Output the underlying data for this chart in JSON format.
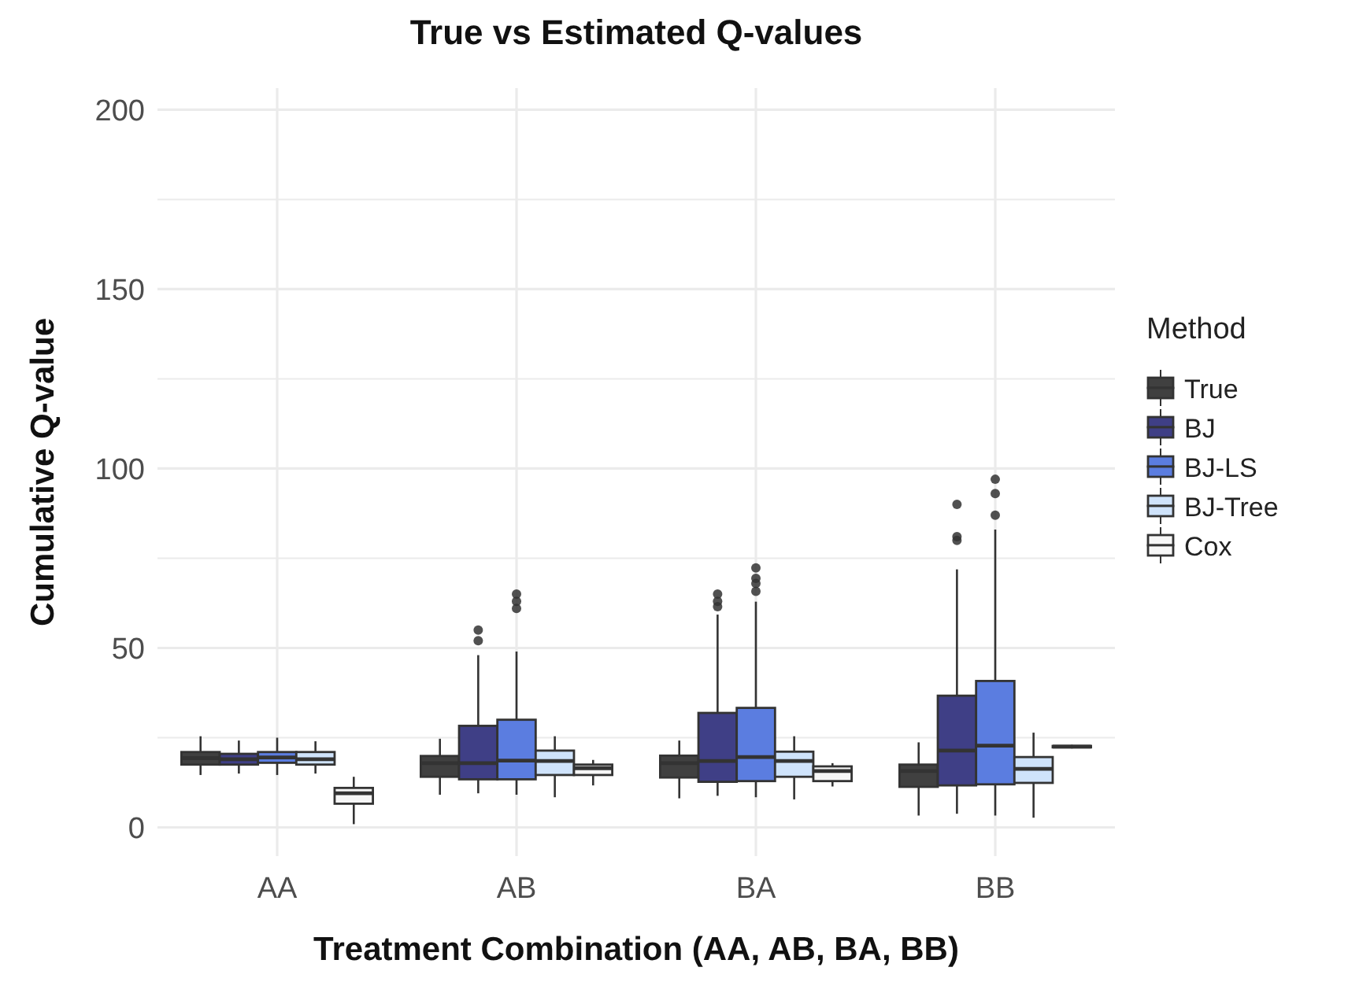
{
  "chart_data": {
    "type": "box",
    "title": "True vs Estimated Q-values",
    "xlabel": "Treatment Combination (AA, AB, BA, BB)",
    "ylabel": "Cumulative Q-value",
    "legend_title": "Method",
    "categories": [
      "AA",
      "AB",
      "BA",
      "BB"
    ],
    "ylim": [
      -8,
      206
    ],
    "yticks": [
      0,
      {
        "value": 25,
        "label": null
      },
      50,
      {
        "value": 75,
        "label": null
      },
      100,
      {
        "value": 125,
        "label": null
      },
      150,
      {
        "value": 175,
        "label": null
      },
      200
    ],
    "grid": true,
    "legend": "right",
    "series": [
      {
        "name": "True",
        "color": "#404040",
        "boxes": [
          {
            "low": 14.6,
            "q1": 17.5,
            "median": 19.3,
            "q3": 21,
            "high": 25.4
          },
          {
            "low": 9.1,
            "q1": 14.1,
            "median": 17.9,
            "q3": 19.9,
            "high": 24.7
          },
          {
            "low": 8.1,
            "q1": 13.9,
            "median": 17.9,
            "q3": 20,
            "high": 24.2
          },
          {
            "low": 3.3,
            "q1": 11.3,
            "median": 15.7,
            "q3": 17.5,
            "high": 23.7
          }
        ]
      },
      {
        "name": "BJ",
        "color": "#3f3f86",
        "boxes": [
          {
            "low": 15,
            "q1": 17.5,
            "median": 19,
            "q3": 20.5,
            "high": 24.2
          },
          {
            "low": 9.5,
            "q1": 13.4,
            "median": 17.9,
            "q3": 28.3,
            "high": 48,
            "outliers": [
              52,
              55
            ]
          },
          {
            "low": 8.8,
            "q1": 12.7,
            "median": 18.5,
            "q3": 31.9,
            "high": 59.3,
            "outliers": [
              61.5,
              63,
              65
            ]
          },
          {
            "low": 3.8,
            "q1": 11.7,
            "median": 21.4,
            "q3": 36.7,
            "high": 71.9,
            "outliers": [
              80,
              81,
              90
            ]
          }
        ]
      },
      {
        "name": "BJ-LS",
        "color": "#5b7de0",
        "boxes": [
          {
            "low": 14.6,
            "q1": 18,
            "median": 19.5,
            "q3": 21,
            "high": 25
          },
          {
            "low": 9.1,
            "q1": 13.4,
            "median": 18.6,
            "q3": 30,
            "high": 49,
            "outliers": [
              61,
              63,
              65
            ]
          },
          {
            "low": 8.4,
            "q1": 12.9,
            "median": 19.6,
            "q3": 33.3,
            "high": 62.9,
            "outliers": [
              65.8,
              68,
              69.4,
              72.3
            ]
          },
          {
            "low": 3.3,
            "q1": 12,
            "median": 22.8,
            "q3": 40.8,
            "high": 83,
            "outliers": [
              87,
              93,
              97
            ]
          }
        ]
      },
      {
        "name": "BJ-Tree",
        "color": "#cfe3fb",
        "boxes": [
          {
            "low": 15,
            "q1": 17.5,
            "median": 19,
            "q3": 21,
            "high": 24
          },
          {
            "low": 8.4,
            "q1": 14.6,
            "median": 18.5,
            "q3": 21.4,
            "high": 25.4
          },
          {
            "low": 7.8,
            "q1": 14.1,
            "median": 18.5,
            "q3": 21.1,
            "high": 25.4
          },
          {
            "low": 2.7,
            "q1": 12.4,
            "median": 16.3,
            "q3": 19.6,
            "high": 26.4
          }
        ]
      },
      {
        "name": "Cox",
        "color": "#f7f7f7",
        "boxes": [
          {
            "low": 0.9,
            "q1": 6.6,
            "median": 9.5,
            "q3": 11,
            "high": 14.1
          },
          {
            "low": 11.7,
            "q1": 14.6,
            "median": 16.5,
            "q3": 17.5,
            "high": 18.8
          },
          {
            "low": 11.4,
            "q1": 12.9,
            "median": 15.7,
            "q3": 17,
            "high": 17.9
          },
          {
            "low": 22,
            "q1": 22.3,
            "median": 22.5,
            "q3": 22.7,
            "high": 23
          }
        ]
      }
    ]
  }
}
